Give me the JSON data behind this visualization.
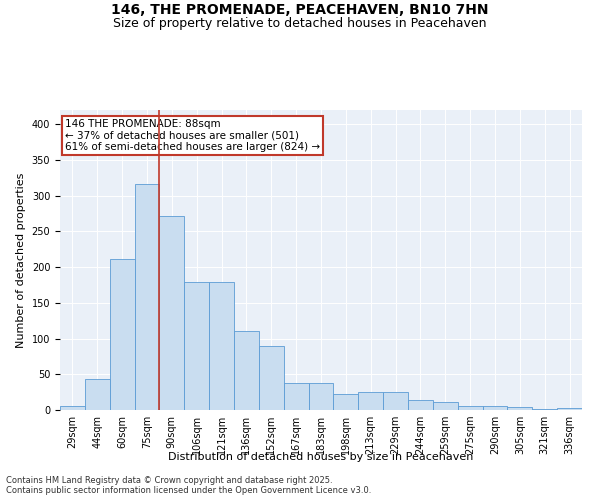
{
  "title_line1": "146, THE PROMENADE, PEACEHAVEN, BN10 7HN",
  "title_line2": "Size of property relative to detached houses in Peacehaven",
  "xlabel": "Distribution of detached houses by size in Peacehaven",
  "ylabel": "Number of detached properties",
  "categories": [
    "29sqm",
    "44sqm",
    "60sqm",
    "75sqm",
    "90sqm",
    "106sqm",
    "121sqm",
    "136sqm",
    "152sqm",
    "167sqm",
    "183sqm",
    "198sqm",
    "213sqm",
    "229sqm",
    "244sqm",
    "259sqm",
    "275sqm",
    "290sqm",
    "305sqm",
    "321sqm",
    "336sqm"
  ],
  "values": [
    5,
    44,
    212,
    316,
    271,
    179,
    179,
    110,
    90,
    38,
    38,
    23,
    25,
    25,
    14,
    11,
    6,
    6,
    4,
    2,
    3
  ],
  "bar_color": "#c9ddf0",
  "bar_edge_color": "#5b9bd5",
  "vline_color": "#c0392b",
  "vline_x_index": 4,
  "annotation_text": "146 THE PROMENADE: 88sqm\n← 37% of detached houses are smaller (501)\n61% of semi-detached houses are larger (824) →",
  "annotation_box_facecolor": "#ffffff",
  "annotation_box_edgecolor": "#c0392b",
  "ylim": [
    0,
    420
  ],
  "yticks": [
    0,
    50,
    100,
    150,
    200,
    250,
    300,
    350,
    400
  ],
  "bg_color": "#eaf0f8",
  "fig_bg_color": "#ffffff",
  "title_fontsize": 10,
  "subtitle_fontsize": 9,
  "axis_label_fontsize": 8,
  "tick_fontsize": 7,
  "annotation_fontsize": 7.5,
  "footer_fontsize": 6,
  "footer_line1": "Contains HM Land Registry data © Crown copyright and database right 2025.",
  "footer_line2": "Contains public sector information licensed under the Open Government Licence v3.0."
}
